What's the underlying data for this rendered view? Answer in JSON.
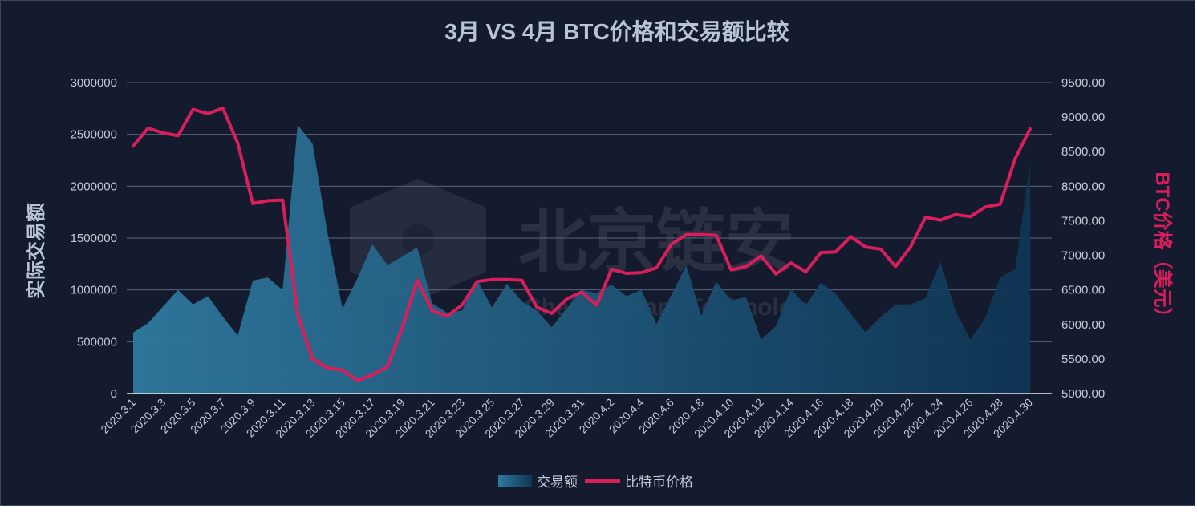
{
  "watermark": {
    "cn": "北京链安",
    "en": "Chains Guard Technology"
  },
  "chart_data": {
    "type": "area+line",
    "title": "3月 VS 4月 BTC价格和交易额比较",
    "ylabel_left": "实际交易额",
    "ylabel_right": "BTC价格（美元）",
    "ylim_left": [
      0,
      3000000
    ],
    "ylim_right": [
      5000,
      9500
    ],
    "yticks_left": [
      "0",
      "500000",
      "1000000",
      "1500000",
      "2000000",
      "2500000",
      "3000000"
    ],
    "yticks_right": [
      "5000.00",
      "5500.00",
      "6000.00",
      "6500.00",
      "7000.00",
      "7500.00",
      "8000.00",
      "8500.00",
      "9000.00",
      "9500.00"
    ],
    "grid": true,
    "legend_position": "bottom-center",
    "x_tick_labels": [
      "2020.3.1",
      "2020.3.3",
      "2020.3.5",
      "2020.3.7",
      "2020.3.9",
      "2020.3.11",
      "2020.3.13",
      "2020.3.15",
      "2020.3.17",
      "2020.3.19",
      "2020.3.21",
      "2020.3.23",
      "2020.3.25",
      "2020.3.27",
      "2020.3.29",
      "2020.3.31",
      "2020.4.2",
      "2020.4.4",
      "2020.4.6",
      "2020.4.8",
      "2020.4.10",
      "2020.4.12",
      "2020.4.14",
      "2020.4.16",
      "2020.4.18",
      "2020.4.20",
      "2020.4.22",
      "2020.4.24",
      "2020.4.26",
      "2020.4.28",
      "2020.4.30"
    ],
    "series": [
      {
        "name": "交易额",
        "kind": "area",
        "axis": "left",
        "color": "#2b6f94",
        "values": [
          590000,
          680000,
          840000,
          1000000,
          860000,
          940000,
          740000,
          560000,
          1090000,
          1120000,
          1000000,
          2590000,
          2410000,
          1550000,
          820000,
          1110000,
          1440000,
          1240000,
          1320000,
          1410000,
          870000,
          780000,
          800000,
          1100000,
          830000,
          1060000,
          890000,
          800000,
          640000,
          820000,
          1000000,
          970000,
          1050000,
          940000,
          1000000,
          670000,
          950000,
          1240000,
          750000,
          1080000,
          900000,
          930000,
          520000,
          650000,
          1010000,
          850000,
          1070000,
          960000,
          770000,
          590000,
          740000,
          860000,
          860000,
          920000,
          1270000,
          800000,
          520000,
          730000,
          1120000,
          1200000,
          2220000
        ]
      },
      {
        "name": "比特币价格",
        "kind": "line",
        "axis": "right",
        "color": "#d81e5b",
        "values": [
          8580,
          8840,
          8770,
          8730,
          9110,
          9050,
          9130,
          8620,
          7750,
          7790,
          7800,
          6150,
          5500,
          5370,
          5340,
          5190,
          5270,
          5390,
          5950,
          6640,
          6200,
          6120,
          6280,
          6620,
          6650,
          6650,
          6640,
          6250,
          6160,
          6370,
          6470,
          6280,
          6800,
          6740,
          6750,
          6820,
          7160,
          7300,
          7300,
          7290,
          6790,
          6840,
          6990,
          6730,
          6890,
          6760,
          7040,
          7050,
          7270,
          7120,
          7090,
          6840,
          7120,
          7550,
          7510,
          7590,
          7560,
          7700,
          7740,
          8400,
          8830
        ]
      }
    ]
  }
}
